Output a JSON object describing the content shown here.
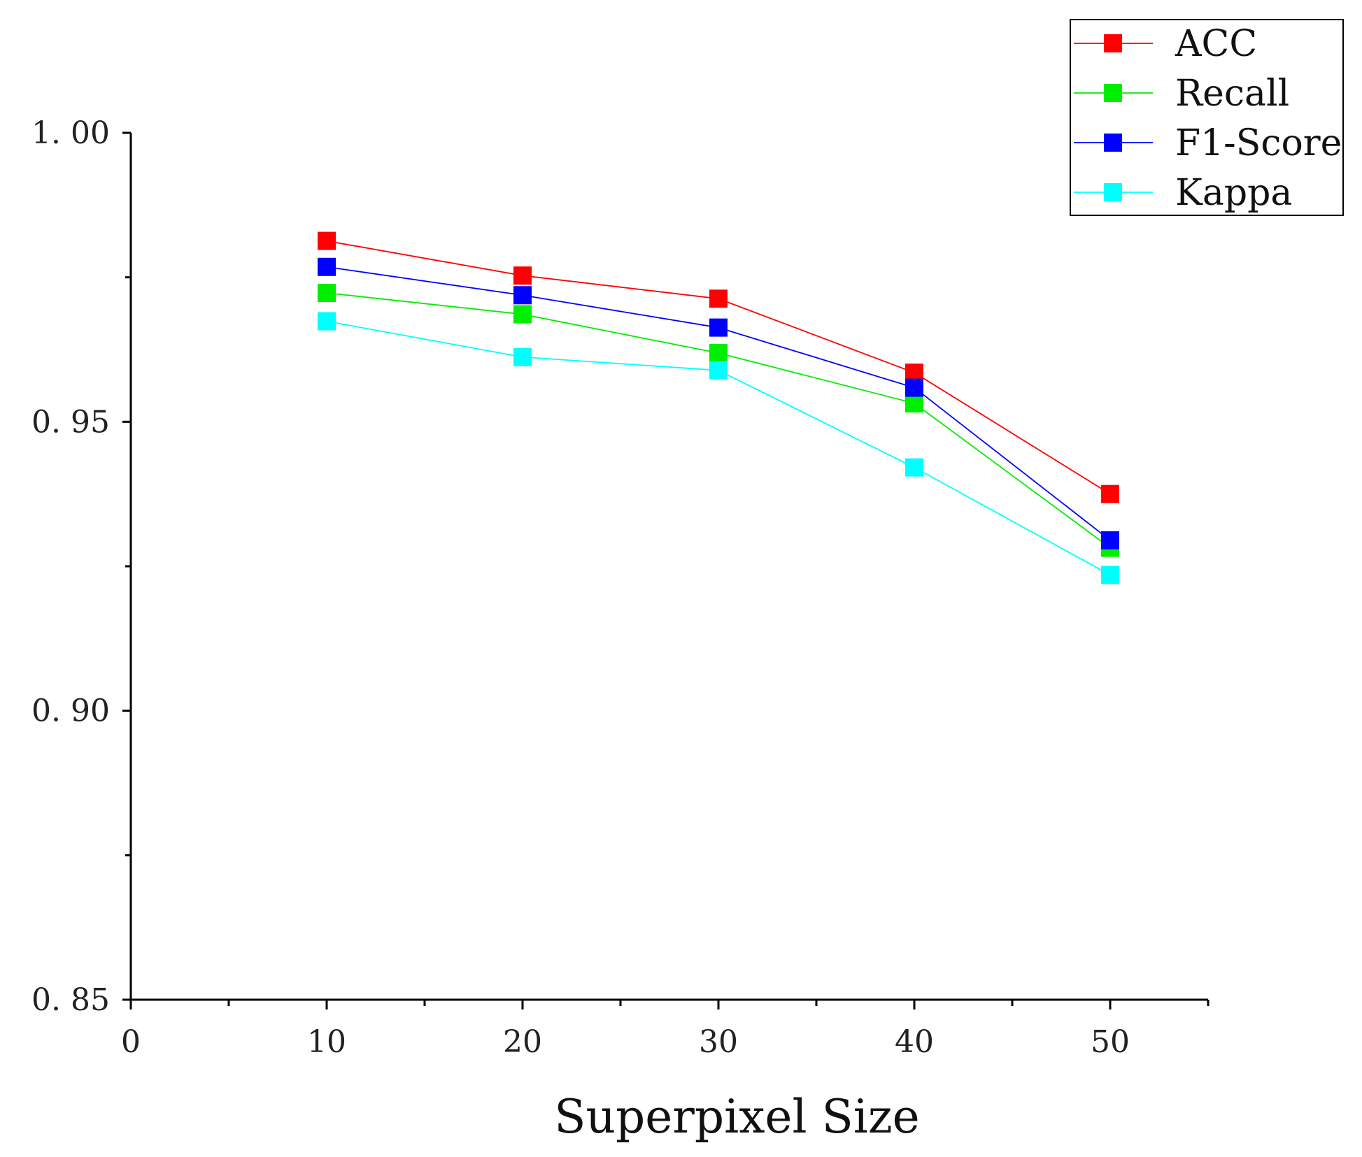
{
  "chart_data": {
    "type": "line",
    "title": "",
    "xlabel": "Superpixel Size",
    "ylabel": "",
    "xlim": [
      0,
      55
    ],
    "ylim": [
      0.85,
      1.0
    ],
    "x": [
      10,
      20,
      30,
      40,
      50
    ],
    "x_ticks": [
      0,
      10,
      20,
      30,
      40,
      50
    ],
    "x_tick_labels": [
      "0",
      "10",
      "20",
      "30",
      "40",
      "50"
    ],
    "y_ticks": [
      0.85,
      0.9,
      0.95,
      1.0
    ],
    "y_tick_labels": [
      "0. 85",
      "0. 90",
      "0. 95",
      "1. 00"
    ],
    "legend_position": "top-right",
    "series": [
      {
        "name": "ACC",
        "color": "#ff0000",
        "values": [
          0.9813,
          0.9753,
          0.9713,
          0.9585,
          0.9375
        ]
      },
      {
        "name": "Recall",
        "color": "#00ee00",
        "values": [
          0.9723,
          0.9686,
          0.9619,
          0.9532,
          0.9282
        ]
      },
      {
        "name": "F1-Score",
        "color": "#0000ff",
        "values": [
          0.9768,
          0.9719,
          0.9663,
          0.9559,
          0.9295
        ]
      },
      {
        "name": "Kappa",
        "color": "#00ffff",
        "values": [
          0.9674,
          0.9612,
          0.9589,
          0.9421,
          0.9235
        ]
      }
    ]
  }
}
